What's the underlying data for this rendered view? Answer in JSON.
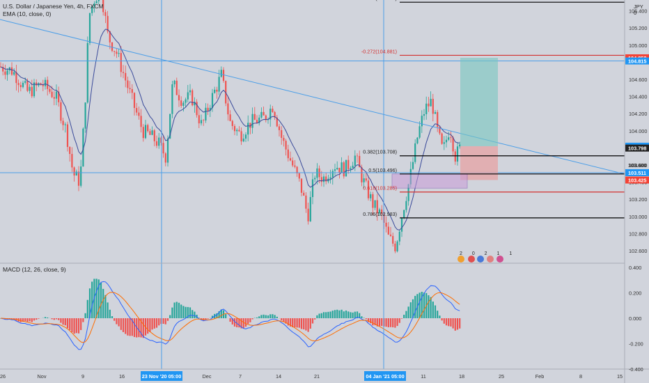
{
  "header": {
    "title": "U.S. Dollar / Japanese Yen, 4h, FXCM",
    "ema_label": "EMA (10, close, 0)",
    "macd_label": "MACD (12, 26, close, 9)",
    "currency": "JPY",
    "corner_value": "0"
  },
  "colors": {
    "background": "#d1d4dc",
    "axis_bg": "#d1d4dc",
    "up_candle": "#26a69a",
    "down_candle": "#ef5350",
    "trend_line": "#4a9ee8",
    "ema": "#3a4a9a",
    "macd_line": "#2962ff",
    "signal_line": "#ff6d00",
    "fib_black": "#000000",
    "fib_red": "#d32f2f",
    "target_zone": "#76c7c0",
    "stop_zone": "#e8a0a0",
    "label_blue": "#2196f3",
    "label_red": "#f44336"
  },
  "chart_data": {
    "type": "candlestick",
    "price_axis": {
      "ticks": [
        "105.600",
        "105.400",
        "105.200",
        "105.000",
        "104.800",
        "104.600",
        "104.400",
        "104.200",
        "104.000",
        "103.800",
        "103.600",
        "103.400",
        "103.200",
        "103.000",
        "102.800",
        "102.600"
      ],
      "range": [
        102.55,
        105.95
      ]
    },
    "macd_axis": {
      "ticks": [
        "0.400",
        "0.200",
        "0.000",
        "-0.200",
        "-0.400"
      ],
      "range": [
        -0.42,
        0.42
      ]
    },
    "time_axis": {
      "ticks": [
        "26",
        "Nov",
        "9",
        "16",
        "Dec",
        "7",
        "14",
        "21",
        "11",
        "18",
        "25",
        "Feb",
        "8",
        "15"
      ],
      "highlighted": [
        "23 Nov '20  05:00",
        "04 Jan '21  05:00"
      ]
    },
    "price_labels": [
      {
        "value": "105.772",
        "color": "blue"
      },
      {
        "value": "105.692",
        "color": "blue"
      },
      {
        "value": "104.852",
        "color": "red"
      },
      {
        "value": "104.815",
        "color": "blue"
      },
      {
        "value": "103.820",
        "color": "blue"
      },
      {
        "value": "103.798",
        "color": "dark"
      },
      {
        "value": "103.600",
        "color": "plain"
      },
      {
        "value": "103.511",
        "color": "blue"
      },
      {
        "value": "103.425",
        "color": "red"
      }
    ],
    "fib_levels": [
      {
        "label": "-0.618(105.501)",
        "price": 105.501,
        "color": "black"
      },
      {
        "label": "-0.272(104.881)",
        "price": 104.881,
        "color": "red"
      },
      {
        "label": "0.382(103.708)",
        "price": 103.708,
        "color": "black"
      },
      {
        "label": "0.5(103.496)",
        "price": 103.496,
        "color": "black"
      },
      {
        "label": "0.618(103.285)",
        "price": 103.285,
        "color": "red"
      },
      {
        "label": "0.786(102.983)",
        "price": 102.983,
        "color": "black"
      }
    ],
    "horizontal_lines": [
      105.772,
      105.692,
      104.815,
      103.511
    ],
    "trade_position": {
      "entry": 103.82,
      "target": 104.852,
      "stop": 103.425
    },
    "legend": {
      "events_label": "2 0 2 1 1"
    }
  }
}
